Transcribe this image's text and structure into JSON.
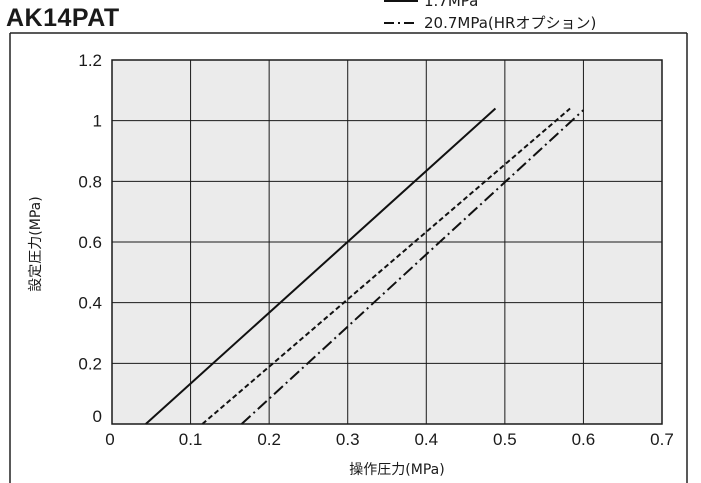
{
  "title": "AK14PAT",
  "chart_data": {
    "type": "line",
    "title": "AK14PAT",
    "xlabel": "操作圧力(MPa)",
    "ylabel": "設定圧力(MPa)",
    "xlim": [
      0,
      0.7
    ],
    "ylim": [
      0,
      1.2
    ],
    "x_ticks": [
      "0",
      "0.1",
      "0.2",
      "0.3",
      "0.4",
      "0.5",
      "0.6",
      "0.7"
    ],
    "y_ticks": [
      "0",
      "0.2",
      "0.4",
      "0.6",
      "0.8",
      "1",
      "1.2"
    ],
    "grid": true,
    "legend": "top-right",
    "series": [
      {
        "name": "1.7MPa",
        "style": "solid",
        "x": [
          0.043,
          0.488
        ],
        "y": [
          0,
          1.04
        ]
      },
      {
        "name": "",
        "style": "dashed",
        "x": [
          0.115,
          0.583
        ],
        "y": [
          0,
          1.04
        ]
      },
      {
        "name": "20.7MPa(HRオプション)",
        "style": "dashdot",
        "x": [
          0.165,
          0.6
        ],
        "y": [
          0,
          1.035
        ]
      }
    ]
  }
}
